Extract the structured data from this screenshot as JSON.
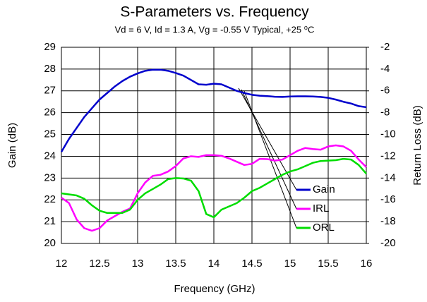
{
  "chart_data": {
    "type": "line",
    "title": "S-Parameters vs. Frequency",
    "subtitle": "Vd = 6 V, Id = 1.3 A, Vg = -0.55 V Typical, +25 ⁰C",
    "x_label": "Frequency (GHz)",
    "y_label": "Gain (dB)",
    "y2_label": "Return Loss (dB)",
    "x": [
      12,
      12.1,
      12.2,
      12.3,
      12.4,
      12.5,
      12.6,
      12.7,
      12.8,
      12.9,
      13,
      13.1,
      13.2,
      13.3,
      13.4,
      13.5,
      13.6,
      13.7,
      13.8,
      13.9,
      14,
      14.1,
      14.2,
      14.3,
      14.4,
      14.5,
      14.6,
      14.7,
      14.8,
      14.9,
      15,
      15.1,
      15.2,
      15.3,
      15.4,
      15.5,
      15.6,
      15.7,
      15.8,
      15.9,
      16
    ],
    "series": [
      {
        "name": "Gain",
        "color": "#0000cc",
        "values": [
          24.2,
          24.8,
          25.3,
          25.8,
          26.2,
          26.6,
          26.9,
          27.2,
          27.45,
          27.65,
          27.8,
          27.92,
          27.97,
          27.97,
          27.92,
          27.82,
          27.7,
          27.5,
          27.3,
          27.28,
          27.33,
          27.3,
          27.15,
          27.0,
          26.9,
          26.82,
          26.78,
          26.76,
          26.73,
          26.72,
          26.74,
          26.75,
          26.75,
          26.74,
          26.72,
          26.68,
          26.6,
          26.5,
          26.42,
          26.3,
          26.25
        ]
      },
      {
        "name": "IRL",
        "color": "#ff00ff",
        "axis": "y2",
        "values": [
          -15.8,
          -16.3,
          -17.8,
          -18.6,
          -18.84,
          -18.6,
          -17.9,
          -17.5,
          -17.1,
          -16.8,
          -15.4,
          -14.4,
          -13.8,
          -13.7,
          -13.4,
          -12.9,
          -12.2,
          -12.0,
          -12.06,
          -11.9,
          -11.9,
          -11.96,
          -12.2,
          -12.5,
          -12.8,
          -12.7,
          -12.24,
          -12.26,
          -12.4,
          -12.3,
          -11.9,
          -11.5,
          -11.24,
          -11.34,
          -11.4,
          -11.1,
          -11.0,
          -11.1,
          -11.5,
          -12.3,
          -13.0
        ]
      },
      {
        "name": "ORL",
        "color": "#00dd00",
        "axis": "y2",
        "values": [
          -15.4,
          -15.5,
          -15.6,
          -15.9,
          -16.5,
          -17.0,
          -17.2,
          -17.2,
          -17.2,
          -16.9,
          -16.0,
          -15.4,
          -15.0,
          -14.6,
          -14.1,
          -14.0,
          -14.04,
          -14.24,
          -15.2,
          -17.3,
          -17.6,
          -16.9,
          -16.6,
          -16.3,
          -15.8,
          -15.2,
          -14.9,
          -14.5,
          -14.1,
          -13.7,
          -13.4,
          -13.2,
          -12.9,
          -12.6,
          -12.44,
          -12.4,
          -12.36,
          -12.24,
          -12.3,
          -12.8,
          -13.6
        ]
      }
    ],
    "xlim": [
      12,
      16
    ],
    "xticks": [
      12,
      12.5,
      13,
      13.5,
      14,
      14.5,
      15,
      15.5,
      16
    ],
    "ylim": [
      20,
      29
    ],
    "yticks": [
      20,
      21,
      22,
      23,
      24,
      25,
      26,
      27,
      28,
      29
    ],
    "y2lim": [
      -20,
      -2
    ],
    "y2ticks": [
      -20,
      -18,
      -16,
      -14,
      -12,
      -10,
      -8,
      -6,
      -4,
      -2
    ],
    "grid": true,
    "legend": "lower right"
  }
}
